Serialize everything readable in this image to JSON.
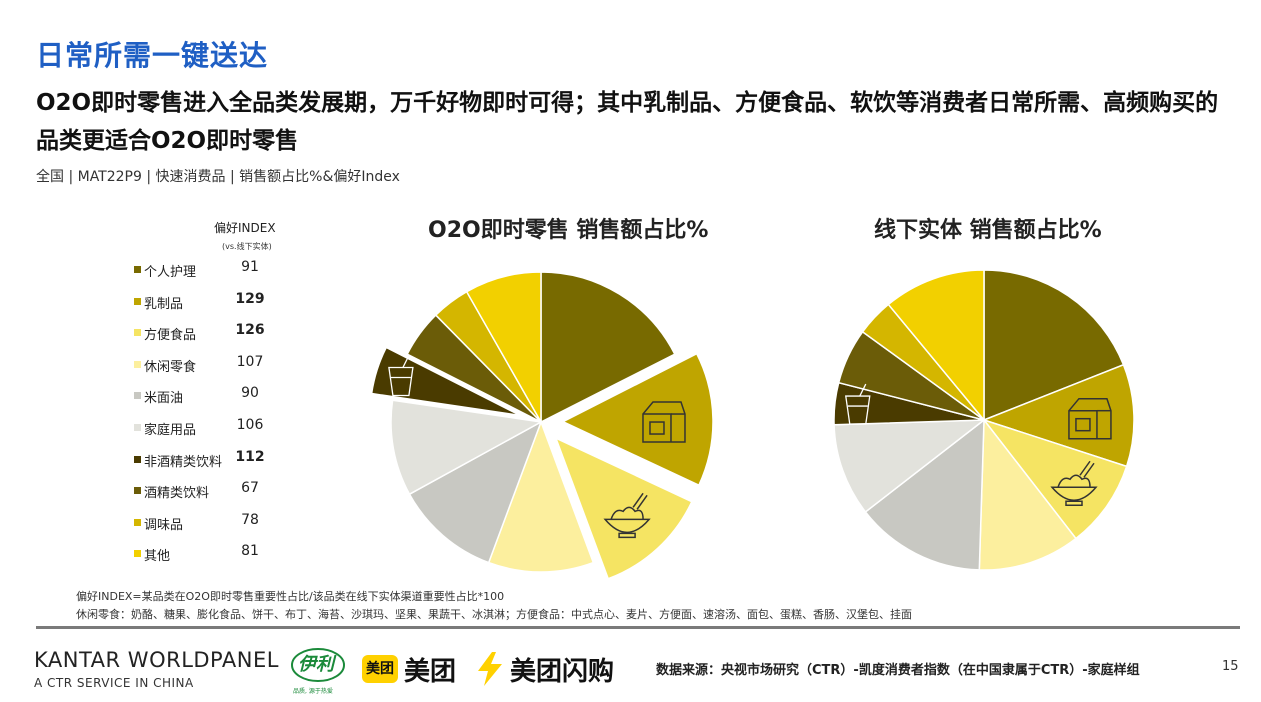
{
  "header": {
    "title": "日常所需一键送达",
    "subtitle": "O2O即时零售进入全品类发展期，万千好物即时可得；其中乳制品、方便食品、软饮等消费者日常所需、高频购买的品类更适合O2O即时零售",
    "scope": "全国 | MAT22P9 | 快速消费品 | 销售额占比%&偏好Index"
  },
  "legend": {
    "header": "偏好INDEX",
    "note": "(vs.线下实体)",
    "items": [
      {
        "label": "个人护理",
        "index": "91",
        "color": "#786a00",
        "bold": false
      },
      {
        "label": "乳制品",
        "index": "129",
        "color": "#bfa500",
        "bold": true
      },
      {
        "label": "方便食品",
        "index": "126",
        "color": "#f5e463",
        "bold": true
      },
      {
        "label": "休闲零食",
        "index": "107",
        "color": "#fcef9e",
        "bold": false
      },
      {
        "label": "米面油",
        "index": "90",
        "color": "#c8c8c2",
        "bold": false
      },
      {
        "label": "家庭用品",
        "index": "106",
        "color": "#e2e2dc",
        "bold": false
      },
      {
        "label": "非酒精类饮料",
        "index": "112",
        "color": "#4a3b00",
        "bold": true
      },
      {
        "label": "酒精类饮料",
        "index": "67",
        "color": "#6b5c08",
        "bold": false
      },
      {
        "label": "调味品",
        "index": "78",
        "color": "#d4b600",
        "bold": false
      },
      {
        "label": "其他",
        "index": "81",
        "color": "#f2d000",
        "bold": false
      }
    ]
  },
  "chart_data": [
    {
      "type": "pie",
      "title": "O2O即时零售 销售额占比%",
      "categories": [
        "个人护理",
        "乳制品",
        "方便食品",
        "休闲零食",
        "米面油",
        "家庭用品",
        "非酒精类饮料",
        "酒精类饮料",
        "调味品",
        "其他"
      ],
      "values": [
        17,
        14,
        12,
        11,
        11,
        10,
        5,
        5,
        4,
        8
      ],
      "exploded": [
        "乳制品",
        "方便食品",
        "非酒精类饮料"
      ]
    },
    {
      "type": "pie",
      "title": "线下实体 销售额占比%",
      "categories": [
        "个人护理",
        "乳制品",
        "方便食品",
        "休闲零食",
        "米面油",
        "家庭用品",
        "非酒精类饮料",
        "酒精类饮料",
        "调味品",
        "其他"
      ],
      "values": [
        19,
        11,
        9.5,
        11,
        14,
        10,
        4.5,
        6,
        4,
        11
      ],
      "exploded": []
    }
  ],
  "footnotes": {
    "line1": "偏好INDEX=某品类在O2O即时零售重要性占比/该品类在线下实体渠道重要性占比*100",
    "line2": "休闲零食：奶酪、糖果、膨化食品、饼干、布丁、海苔、沙琪玛、坚果、果蔬干、冰淇淋；方便食品：中式点心、麦片、方便面、速溶汤、面包、蛋糕、香肠、汉堡包、挂面"
  },
  "footer": {
    "kantar": "KANTAR WORLDPANEL",
    "kantar_sub": "A CTR SERVICE IN CHINA",
    "yili": "伊利",
    "yili_slogan": "品质, 源于热爱",
    "meituan_badge": "美团",
    "meituan": "美团",
    "flash": "美团闪购",
    "source": "数据来源：央视市场研究（CTR）-凯度消费者指数（在中国隶属于CTR）-家庭样组",
    "page": "15"
  }
}
